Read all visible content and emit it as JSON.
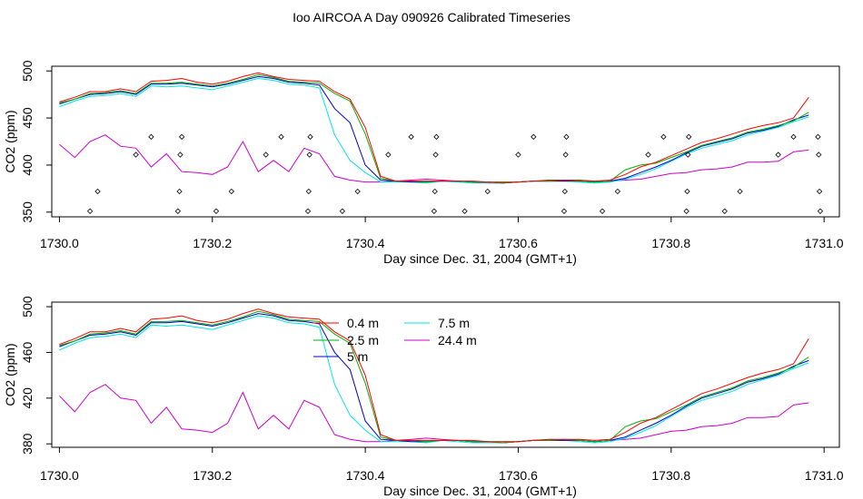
{
  "title": "Ioo AIRCOA A  Day 090926  Calibrated Timeseries",
  "chart_data": [
    {
      "type": "line",
      "panel": "top",
      "xlabel": "Day since Dec. 31, 2004 (GMT+1)",
      "ylabel": "CO2 (ppm)",
      "xlim": [
        1729.99,
        1731.02
      ],
      "ylim": [
        345,
        505
      ],
      "xticks": [
        "1730.0",
        "1730.2",
        "1730.4",
        "1730.6",
        "1730.8",
        "1731.0"
      ],
      "yticks": [
        "350",
        "400",
        "450",
        "500"
      ],
      "x": [
        1730.0,
        1730.02,
        1730.04,
        1730.06,
        1730.08,
        1730.1,
        1730.12,
        1730.14,
        1730.16,
        1730.18,
        1730.2,
        1730.22,
        1730.24,
        1730.26,
        1730.28,
        1730.3,
        1730.32,
        1730.34,
        1730.36,
        1730.38,
        1730.4,
        1730.42,
        1730.44,
        1730.46,
        1730.48,
        1730.5,
        1730.52,
        1730.54,
        1730.56,
        1730.58,
        1730.6,
        1730.62,
        1730.64,
        1730.66,
        1730.68,
        1730.7,
        1730.72,
        1730.74,
        1730.76,
        1730.78,
        1730.8,
        1730.82,
        1730.84,
        1730.86,
        1730.88,
        1730.9,
        1730.92,
        1730.94,
        1730.96,
        1730.98
      ],
      "series": [
        {
          "name": "0.4 m",
          "color": "#ff0000",
          "values": [
            467,
            472,
            478,
            478,
            481,
            478,
            489,
            490,
            492,
            488,
            486,
            489,
            494,
            498,
            494,
            491,
            490,
            489,
            478,
            470,
            440,
            388,
            383,
            383,
            383,
            383,
            383,
            383,
            382,
            382,
            382,
            383,
            384,
            384,
            384,
            383,
            384,
            390,
            398,
            403,
            410,
            417,
            424,
            428,
            433,
            438,
            442,
            445,
            450,
            472
          ]
        },
        {
          "name": "2.5 m",
          "color": "#00b000",
          "values": [
            466,
            470,
            476,
            477,
            479,
            476,
            487,
            487,
            488,
            486,
            484,
            487,
            491,
            496,
            493,
            489,
            488,
            487,
            476,
            468,
            433,
            386,
            383,
            383,
            382,
            383,
            383,
            382,
            382,
            381,
            382,
            383,
            383,
            384,
            383,
            382,
            383,
            395,
            400,
            402,
            408,
            414,
            421,
            425,
            429,
            435,
            438,
            442,
            447,
            456
          ]
        },
        {
          "name": "5 m",
          "color": "#0000cc",
          "values": [
            465,
            470,
            475,
            476,
            478,
            475,
            486,
            486,
            487,
            485,
            483,
            486,
            490,
            494,
            492,
            488,
            487,
            485,
            460,
            445,
            400,
            384,
            383,
            382,
            382,
            383,
            383,
            382,
            382,
            381,
            382,
            383,
            383,
            383,
            383,
            382,
            383,
            386,
            392,
            398,
            405,
            413,
            420,
            424,
            428,
            434,
            437,
            441,
            448,
            453
          ]
        },
        {
          "name": "7.5 m",
          "color": "#00e5e5",
          "values": [
            462,
            468,
            473,
            474,
            476,
            473,
            484,
            483,
            484,
            482,
            480,
            484,
            488,
            492,
            490,
            486,
            485,
            482,
            432,
            405,
            392,
            382,
            382,
            382,
            381,
            383,
            382,
            381,
            381,
            381,
            382,
            383,
            383,
            383,
            382,
            381,
            382,
            385,
            390,
            396,
            404,
            412,
            418,
            422,
            426,
            432,
            436,
            440,
            446,
            451
          ]
        },
        {
          "name": "24.4 m",
          "color": "#cc00cc",
          "values": [
            422,
            408,
            425,
            432,
            420,
            418,
            398,
            412,
            393,
            392,
            390,
            398,
            425,
            393,
            405,
            393,
            418,
            412,
            388,
            384,
            382,
            382,
            383,
            384,
            385,
            384,
            383,
            382,
            381,
            381,
            382,
            383,
            383,
            383,
            383,
            382,
            383,
            384,
            385,
            388,
            391,
            392,
            395,
            396,
            398,
            403,
            403,
            404,
            414,
            416
          ]
        }
      ],
      "markers": {
        "shape": "open-diamond",
        "points": [
          [
            1730.04,
            351
          ],
          [
            1730.05,
            372
          ],
          [
            1730.1,
            411
          ],
          [
            1730.12,
            430
          ],
          [
            1730.155,
            351
          ],
          [
            1730.157,
            372
          ],
          [
            1730.158,
            411
          ],
          [
            1730.16,
            430
          ],
          [
            1730.205,
            351
          ],
          [
            1730.225,
            372
          ],
          [
            1730.27,
            411
          ],
          [
            1730.29,
            430
          ],
          [
            1730.325,
            351
          ],
          [
            1730.326,
            372
          ],
          [
            1730.327,
            411
          ],
          [
            1730.328,
            430
          ],
          [
            1730.37,
            351
          ],
          [
            1730.39,
            372
          ],
          [
            1730.43,
            411
          ],
          [
            1730.46,
            430
          ],
          [
            1730.49,
            351
          ],
          [
            1730.491,
            372
          ],
          [
            1730.492,
            411
          ],
          [
            1730.493,
            430
          ],
          [
            1730.53,
            351
          ],
          [
            1730.56,
            372
          ],
          [
            1730.6,
            411
          ],
          [
            1730.62,
            430
          ],
          [
            1730.66,
            351
          ],
          [
            1730.661,
            372
          ],
          [
            1730.662,
            411
          ],
          [
            1730.663,
            430
          ],
          [
            1730.71,
            351
          ],
          [
            1730.73,
            372
          ],
          [
            1730.77,
            411
          ],
          [
            1730.79,
            430
          ],
          [
            1730.82,
            351
          ],
          [
            1730.821,
            372
          ],
          [
            1730.822,
            411
          ],
          [
            1730.823,
            430
          ],
          [
            1730.87,
            351
          ],
          [
            1730.89,
            372
          ],
          [
            1730.94,
            411
          ],
          [
            1730.96,
            430
          ],
          [
            1730.995,
            351
          ],
          [
            1730.994,
            372
          ],
          [
            1730.993,
            411
          ],
          [
            1730.992,
            430
          ]
        ]
      }
    },
    {
      "type": "line",
      "panel": "bottom",
      "xlabel": "Day since Dec. 31, 2004 (GMT+1)",
      "ylabel": "CO2 (ppm)",
      "xlim": [
        1729.99,
        1731.02
      ],
      "ylim": [
        377,
        504
      ],
      "xticks": [
        "1730.0",
        "1730.2",
        "1730.4",
        "1730.6",
        "1730.8",
        "1731.0"
      ],
      "yticks": [
        "380",
        "420",
        "460",
        "500"
      ],
      "legend": {
        "placement": "top-center",
        "entries": [
          "0.4 m",
          "2.5 m",
          "5 m",
          "7.5 m",
          "24.4 m"
        ]
      },
      "note": "same series as top panel"
    }
  ]
}
